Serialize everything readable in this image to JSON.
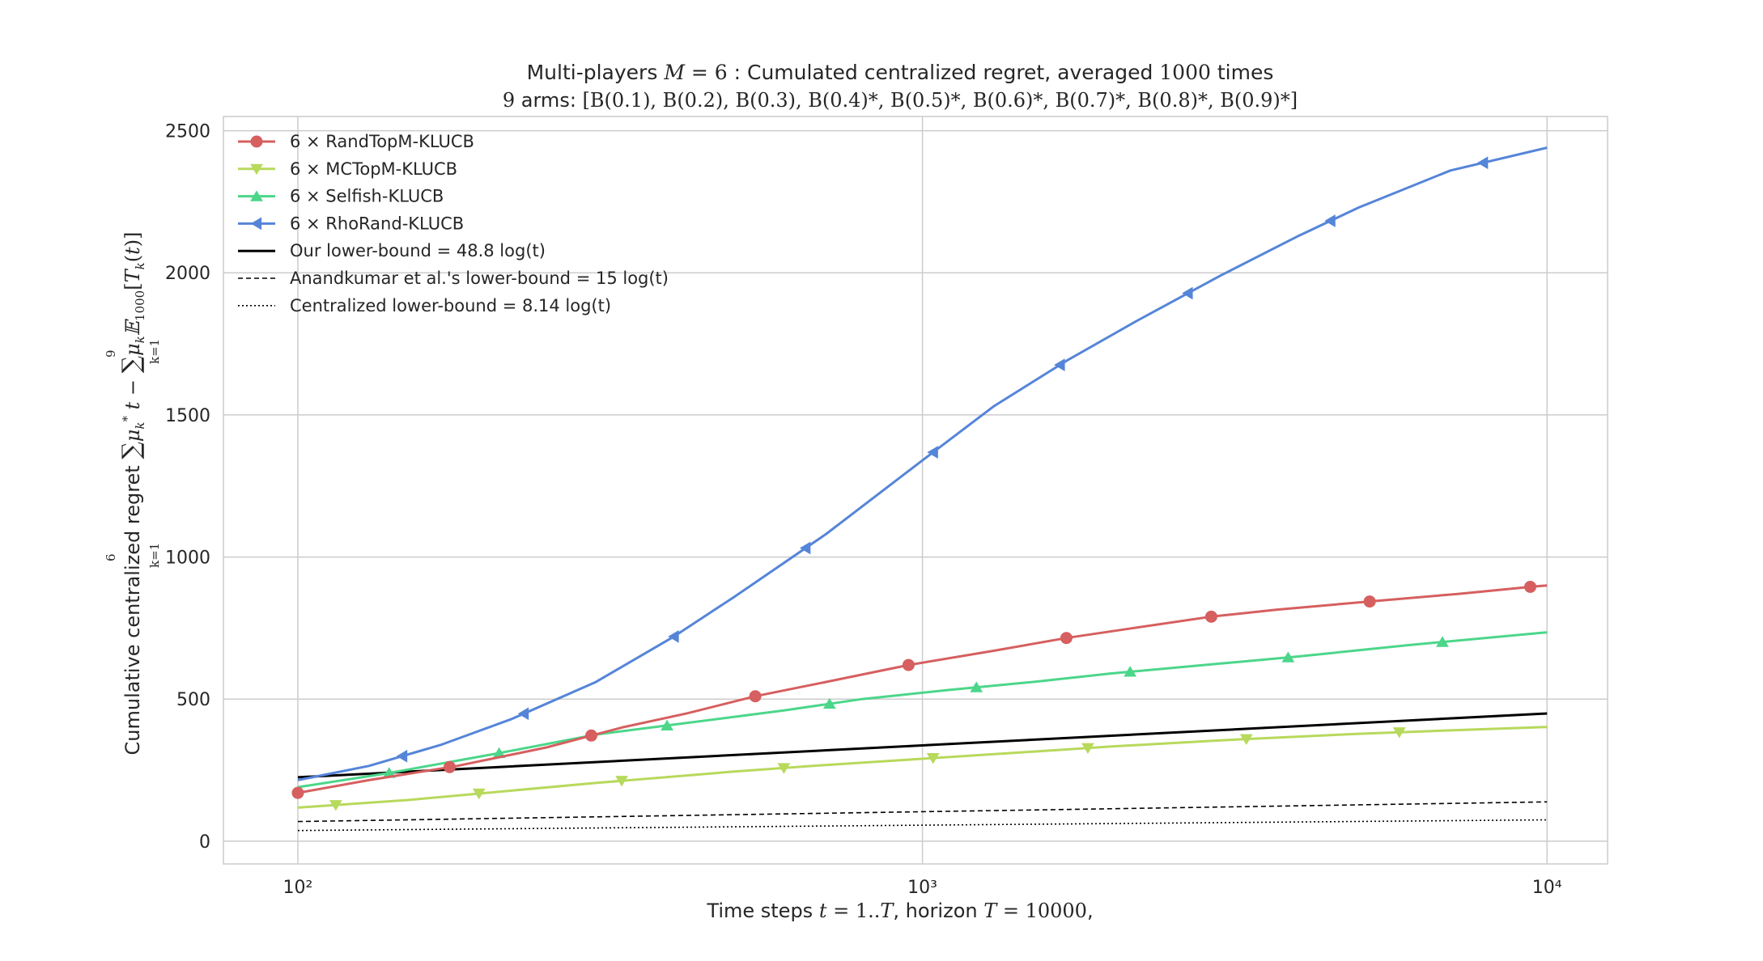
{
  "chart_data": {
    "type": "line",
    "title": "Multi-players M = 6 : Cumulated centralized regret, averaged 1000 times",
    "subtitle": "9 arms: [B(0.1), B(0.2), B(0.3), B(0.4)*, B(0.5)*, B(0.6)*, B(0.7)*, B(0.8)*, B(0.9)*]",
    "xlabel": "Time steps t = 1..T, horizon T = 10000,",
    "ylabel": "Cumulative centralized regret ∑_{k=1}^{6} μ_k* t − ∑_{k=1}^{9} μ_k E_1000[T_k(t)]",
    "xscale": "log",
    "xlim": [
      76,
      12500
    ],
    "ylim": [
      -80,
      2550
    ],
    "xticks": [
      100,
      1000,
      10000
    ],
    "xtick_labels": [
      "10²",
      "10³",
      "10⁴"
    ],
    "yticks": [
      0,
      500,
      1000,
      1500,
      2000,
      2500
    ],
    "ytick_labels": [
      "0",
      "500",
      "1000",
      "1500",
      "2000",
      "2500"
    ],
    "grid": true,
    "legend_position": "top-left",
    "series": [
      {
        "name": "6 × RandTopM-KLUCB",
        "color": "#d65f5f",
        "marker": "circle",
        "x": [
          100,
          130,
          180,
          250,
          330,
          420,
          540,
          700,
          950,
          1300,
          1700,
          2100,
          2900,
          3700,
          5300,
          7200,
          9400,
          10000
        ],
        "y": [
          170,
          215,
          265,
          330,
          400,
          450,
          510,
          560,
          620,
          670,
          715,
          745,
          790,
          815,
          845,
          870,
          895,
          900
        ],
        "markers_x": [
          100,
          175,
          295,
          540,
          950,
          1700,
          2900,
          5200,
          9400
        ]
      },
      {
        "name": "6 × MCTopM-KLUCB",
        "color": "#b7d95c",
        "marker": "triangle-down",
        "x": [
          100,
          150,
          200,
          300,
          500,
          700,
          1000,
          1500,
          2000,
          3000,
          5000,
          7000,
          10000
        ],
        "y": [
          118,
          145,
          170,
          205,
          245,
          268,
          290,
          315,
          333,
          355,
          378,
          390,
          402
        ],
        "markers_x": [
          115,
          195,
          330,
          600,
          1040,
          1840,
          3300,
          5800
        ]
      },
      {
        "name": "6 × Selfish-KLUCB",
        "color": "#4cd68a",
        "marker": "triangle-up",
        "x": [
          100,
          140,
          210,
          300,
          400,
          600,
          800,
          1100,
          1500,
          2000,
          3000,
          4000,
          6000,
          10000
        ],
        "y": [
          190,
          240,
          310,
          375,
          410,
          460,
          500,
          532,
          560,
          590,
          625,
          650,
          690,
          735
        ],
        "markers_x": [
          140,
          210,
          390,
          710,
          1220,
          2150,
          3850,
          6800
        ]
      },
      {
        "name": "6 × RhoRand-KLUCB",
        "color": "#5585d8",
        "marker": "triangle-left",
        "x": [
          100,
          130,
          170,
          220,
          300,
          400,
          500,
          700,
          1000,
          1300,
          1700,
          2200,
          3000,
          4000,
          5000,
          7000,
          10000
        ],
        "y": [
          215,
          265,
          340,
          430,
          560,
          720,
          860,
          1080,
          1340,
          1530,
          1690,
          1830,
          1990,
          2130,
          2230,
          2360,
          2440
        ],
        "markers_x": [
          147,
          230,
          400,
          650,
          1040,
          1660,
          2660,
          4500,
          7900
        ]
      },
      {
        "name": "Our lower-bound = 48.8 log(t)",
        "color": "#000000",
        "style": "solid",
        "x": [
          100,
          10000
        ],
        "y": [
          224.7,
          449.5
        ]
      },
      {
        "name": "Anandkumar et al.'s lower-bound = 15 log(t)",
        "color": "#000000",
        "style": "dashed",
        "x": [
          100,
          10000
        ],
        "y": [
          69.1,
          138.2
        ]
      },
      {
        "name": "Centralized lower-bound = 8.14 log(t)",
        "color": "#000000",
        "style": "dotted",
        "x": [
          100,
          10000
        ],
        "y": [
          37.5,
          75
        ]
      }
    ]
  }
}
